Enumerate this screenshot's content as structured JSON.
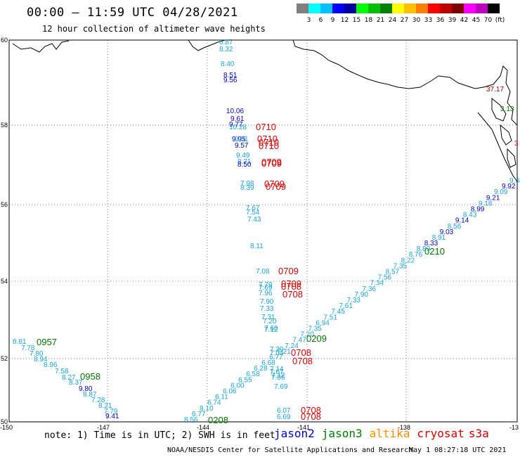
{
  "header": {
    "title": "00:00 – 11:59 UTC 04/28/2021",
    "subtitle": "12 hour collection of altimeter wave heights"
  },
  "legend": {
    "colors": [
      "#808080",
      "#00ffff",
      "#00c0ff",
      "#0000ff",
      "#0000a0",
      "#00ff00",
      "#00c000",
      "#008000",
      "#ffff00",
      "#ffc000",
      "#ff8000",
      "#ff0000",
      "#c00000",
      "#800000",
      "#ff00ff",
      "#c000c0",
      "#000000"
    ],
    "labels": [
      "3",
      "6",
      "9",
      "12",
      "15",
      "18",
      "21",
      "24",
      "27",
      "30",
      "33",
      "36",
      "39",
      "42",
      "45",
      "70",
      "(ft)"
    ]
  },
  "axes": {
    "lon_ticks": [
      "-150",
      "-147",
      "-144",
      "-141",
      "-138",
      "-13"
    ],
    "lat_ticks": [
      "60",
      "58",
      "56",
      "54",
      "52",
      "50"
    ]
  },
  "footer": {
    "note": "note: 1) Time is in UTC; 2) SWH is in feet",
    "sats": [
      {
        "name": "jason2",
        "color": "#0000cc"
      },
      {
        "name": "jason3",
        "color": "#008000"
      },
      {
        "name": "altika",
        "color": "#ff8c00"
      },
      {
        "name": "cryosat",
        "color": "#dd0000"
      },
      {
        "name": "s3a",
        "color": "#cc0000"
      }
    ],
    "credit": "NOAA/NESDIS Center for Satellite Applications and Research",
    "timestamp": "May  1 08:27:18 UTC 2021"
  },
  "colors": {
    "cyan": "#1aa3d9",
    "blue": "#0000cc",
    "green": "#007700",
    "red": "#dd0000",
    "maroon": "#990000"
  },
  "track1": {
    "swh": [
      "6.87",
      "8.32",
      "8.40",
      "8.51",
      "9.56",
      "10.06",
      "9.61",
      "9.77",
      "10.28",
      "9.95",
      "9.31",
      "9.57",
      "9.49",
      "8.71",
      "8.50",
      "7.98",
      "8.39",
      "7.67",
      "7.54",
      "7.43",
      "8.11",
      "7.08",
      "7.79",
      "7.69",
      "7.96",
      "7.90",
      "7.33",
      "7.31",
      "7.20",
      "7.60",
      "7.12",
      "7.29",
      "7.04",
      "7.14",
      "7.67",
      "7.12",
      "7.06",
      "7.69"
    ],
    "times": [
      "0710",
      "0710",
      "0710",
      "0710",
      "0709",
      "0709",
      "0709",
      "0709",
      "0709",
      "0709",
      "0708",
      "0708"
    ],
    "extra_swh": [
      "6.07",
      "6.69"
    ],
    "extra_times": [
      "0708",
      "0708"
    ]
  },
  "track2": {
    "swh": [
      "8.81",
      "7.78",
      "7.80",
      "8.94",
      "8.96",
      "7.58",
      "8.27",
      "8.37",
      "9.80",
      "8.87",
      "7.28",
      "8.21",
      "7.79",
      "9.41"
    ],
    "times": [
      "0957",
      "0958"
    ]
  },
  "track3": {
    "swh": [
      "8.56",
      "6.77",
      "8.10",
      "6.74",
      "6.11",
      "6.06",
      "6.00",
      "6.55",
      "6.58",
      "6.28",
      "6.68",
      "6.77",
      "7.21",
      "7.24",
      "7.47",
      "7.20",
      "7.35",
      "6.94",
      "7.51",
      "7.45",
      "7.61",
      "7.33",
      "7.90",
      "7.36",
      "7.34",
      "7.56",
      "8.57",
      "7.35",
      "8.22",
      "8.76",
      "8.89",
      "8.33",
      "8.91",
      "9.03",
      "8.56",
      "9.14",
      "8.43",
      "8.99",
      "9.18",
      "9.21",
      "9.09",
      "9.92",
      "9.48"
    ],
    "times": [
      "0208",
      "0209",
      "0210"
    ]
  },
  "coast_labels": {
    "a": "37.17",
    "b": "3.13",
    "c": "3"
  }
}
